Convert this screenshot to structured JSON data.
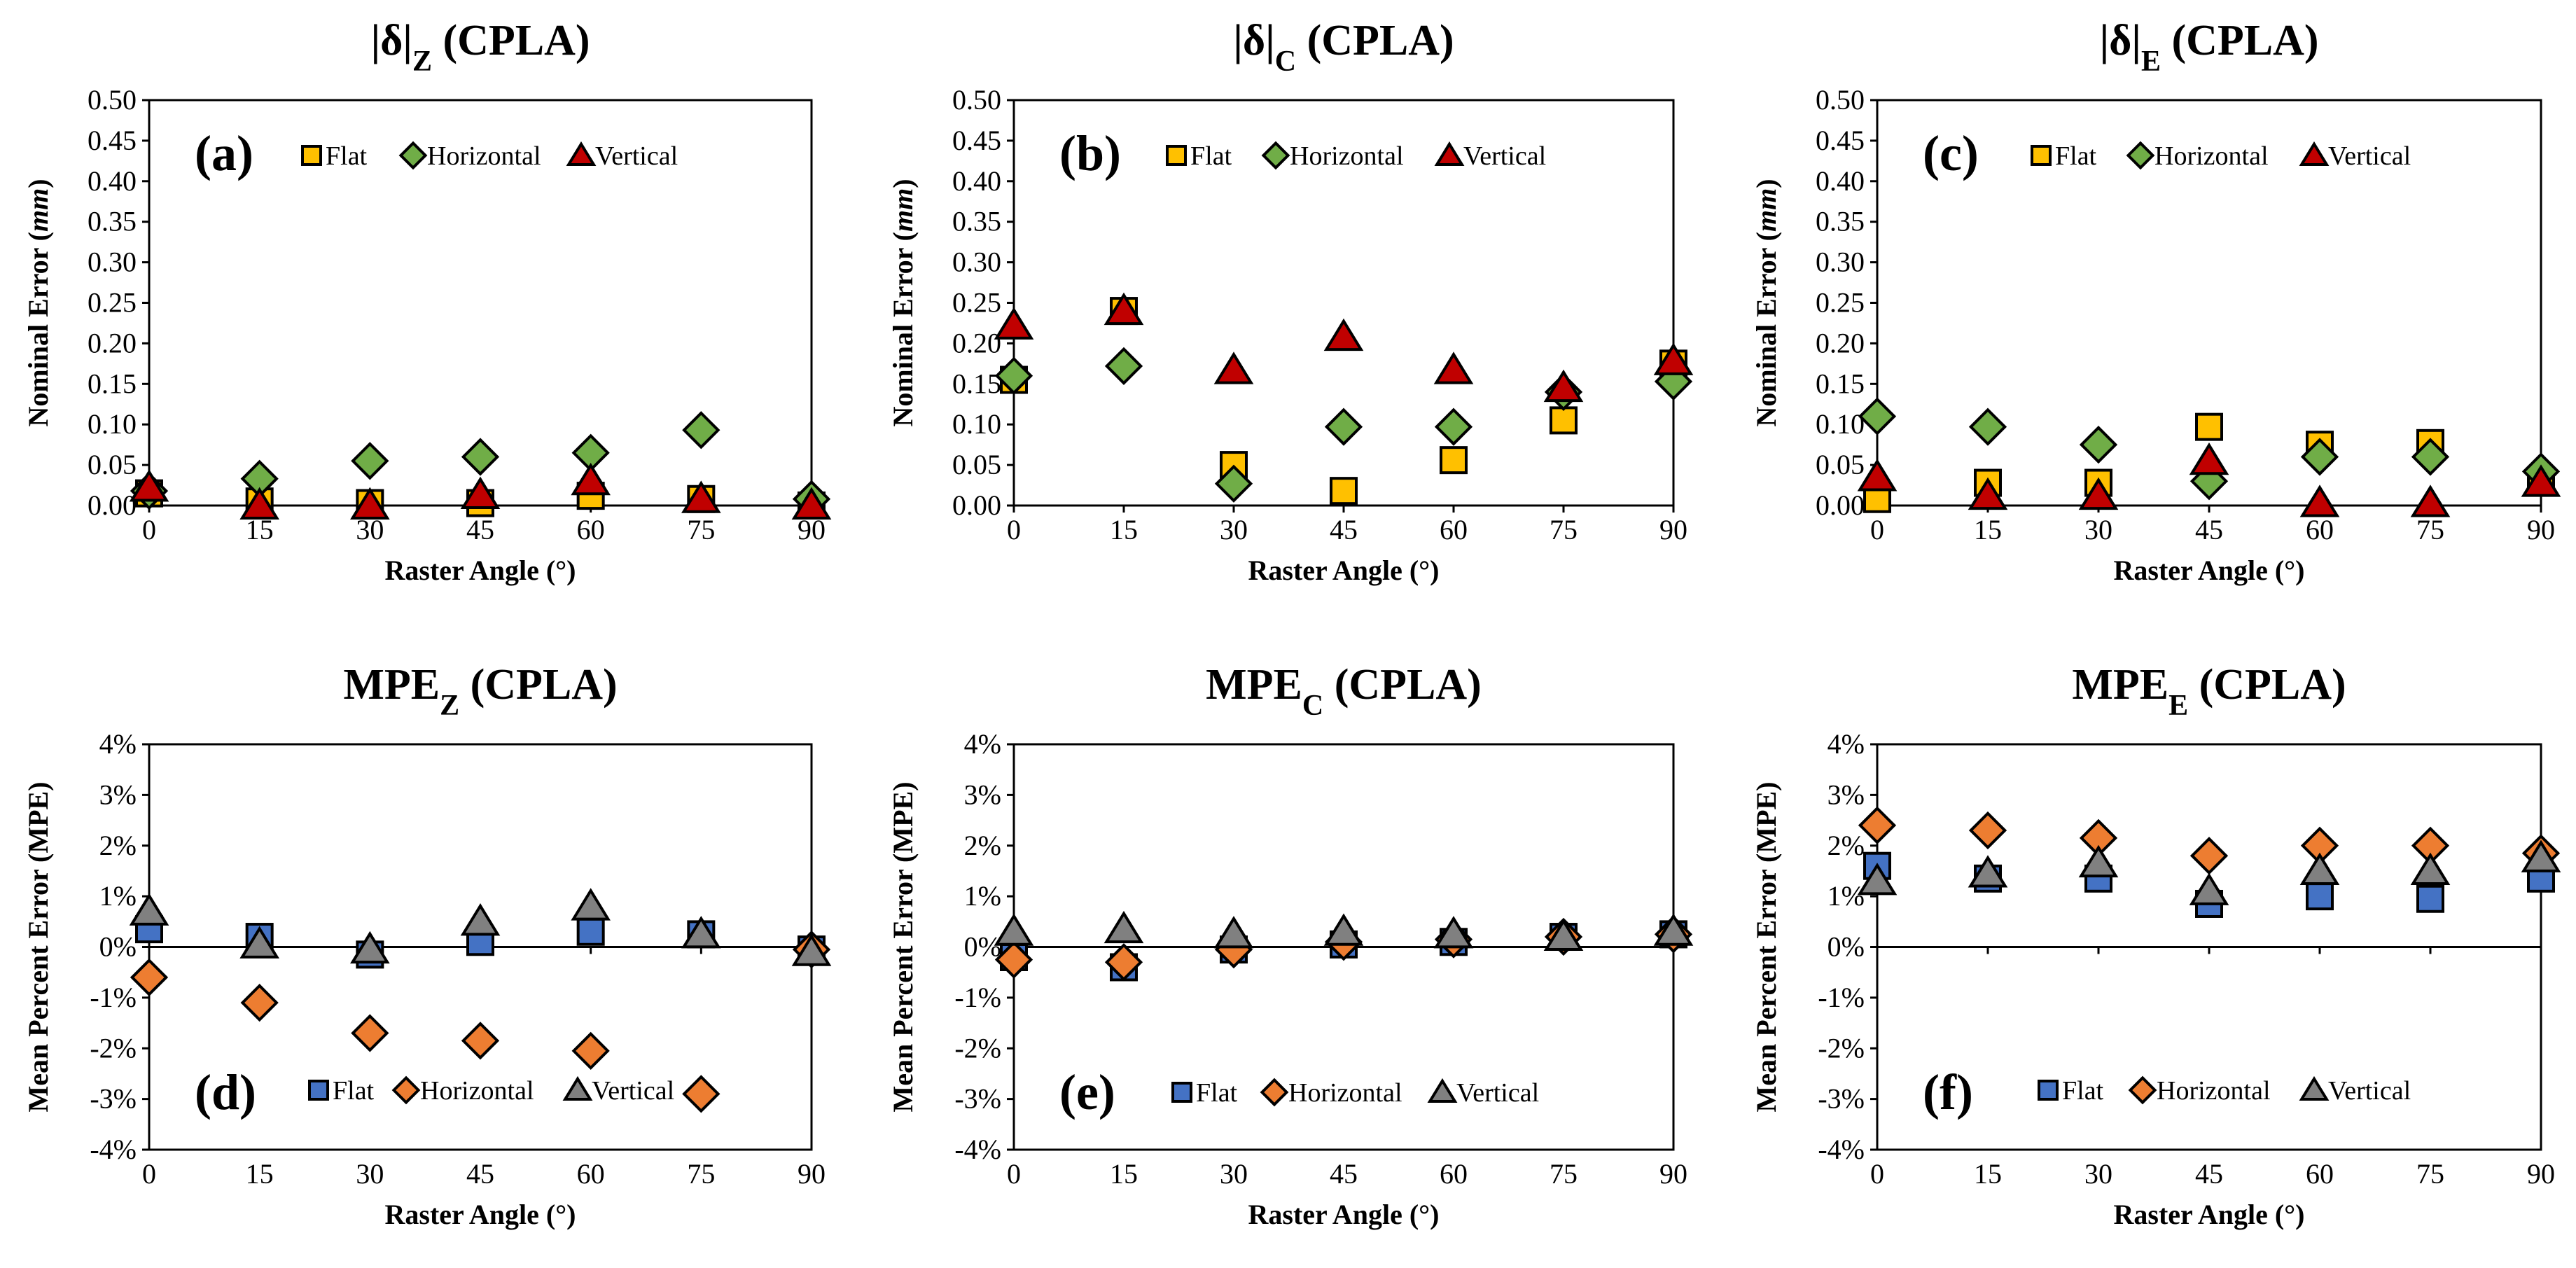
{
  "chart_data": [
    {
      "type": "scatter",
      "title_main": "|δ|",
      "title_sub": "Z",
      "title_rest": "  (CPLA)",
      "panel_label": "(a)",
      "xlabel": "Raster Angle (°)",
      "ylabel_pre": "Nominal  Error (",
      "ylabel_unit": "mm",
      "ylabel_post": ")",
      "x": [
        0,
        15,
        30,
        45,
        60,
        75,
        90
      ],
      "xlim": [
        0,
        90
      ],
      "ylim": [
        0,
        0.5
      ],
      "yticks": [
        "0.00",
        "0.05",
        "0.10",
        "0.15",
        "0.20",
        "0.25",
        "0.30",
        "0.35",
        "0.40",
        "0.45",
        "0.50"
      ],
      "series": [
        {
          "name": "Flat",
          "marker": "square",
          "color": "#FFC000",
          "values": [
            0.015,
            0.005,
            0.003,
            0.003,
            0.012,
            0.008,
            0.0
          ]
        },
        {
          "name": "Horizontal",
          "marker": "diamond",
          "color": "#70AD47",
          "values": [
            0.018,
            0.033,
            0.055,
            0.06,
            0.065,
            0.093,
            0.008
          ]
        },
        {
          "name": "Vertical",
          "marker": "triangle",
          "color": "#C00000",
          "values": [
            0.022,
            0.0,
            0.0,
            0.013,
            0.03,
            0.008,
            0.0
          ]
        }
      ]
    },
    {
      "type": "scatter",
      "title_main": "|δ|",
      "title_sub": "C",
      "title_rest": "  (CPLA)",
      "panel_label": "(b)",
      "xlabel": "Raster Angle (°)",
      "ylabel_pre": "Nominal Error (",
      "ylabel_unit": "mm",
      "ylabel_post": ")",
      "x": [
        0,
        15,
        30,
        45,
        60,
        75,
        90
      ],
      "xlim": [
        0,
        90
      ],
      "ylim": [
        0,
        0.5
      ],
      "yticks": [
        "0.00",
        "0.05",
        "0.10",
        "0.15",
        "0.20",
        "0.25",
        "0.30",
        "0.35",
        "0.40",
        "0.45",
        "0.50"
      ],
      "series": [
        {
          "name": "Flat",
          "marker": "square",
          "color": "#FFC000",
          "values": [
            0.155,
            0.24,
            0.05,
            0.018,
            0.056,
            0.105,
            0.175
          ]
        },
        {
          "name": "Horizontal",
          "marker": "diamond",
          "color": "#70AD47",
          "values": [
            0.16,
            0.172,
            0.027,
            0.097,
            0.097,
            0.14,
            0.153
          ]
        },
        {
          "name": "Vertical",
          "marker": "triangle",
          "color": "#C00000",
          "values": [
            0.222,
            0.24,
            0.167,
            0.208,
            0.167,
            0.145,
            0.178
          ]
        }
      ]
    },
    {
      "type": "scatter",
      "title_main": "|δ|",
      "title_sub": "E",
      "title_rest": "  (CPLA)",
      "panel_label": "(c)",
      "xlabel": "Raster Angle (°)",
      "ylabel_pre": "Nominal Error (",
      "ylabel_unit": "mm",
      "ylabel_post": ")",
      "x": [
        0,
        15,
        30,
        45,
        60,
        75,
        90
      ],
      "xlim": [
        0,
        90
      ],
      "ylim": [
        0,
        0.5
      ],
      "yticks": [
        "0.00",
        "0.05",
        "0.10",
        "0.15",
        "0.20",
        "0.25",
        "0.30",
        "0.35",
        "0.40",
        "0.45",
        "0.50"
      ],
      "series": [
        {
          "name": "Flat",
          "marker": "square",
          "color": "#FFC000",
          "values": [
            0.008,
            0.028,
            0.028,
            0.097,
            0.075,
            0.077,
            0.03
          ]
        },
        {
          "name": "Horizontal",
          "marker": "diamond",
          "color": "#70AD47",
          "values": [
            0.11,
            0.097,
            0.075,
            0.03,
            0.06,
            0.06,
            0.042
          ]
        },
        {
          "name": "Vertical",
          "marker": "triangle",
          "color": "#C00000",
          "values": [
            0.035,
            0.012,
            0.012,
            0.055,
            0.003,
            0.003,
            0.028
          ]
        }
      ]
    },
    {
      "type": "scatter",
      "title_main": "MPE",
      "title_sub": "Z",
      "title_rest": " (CPLA)",
      "panel_label": "(d)",
      "xlabel": "Raster Angle (°)",
      "ylabel_pre": "Mean Percent Error (MPE)",
      "ylabel_unit": "",
      "ylabel_post": "",
      "x": [
        0,
        15,
        30,
        45,
        60,
        75,
        90
      ],
      "xlim": [
        0,
        90
      ],
      "ylim": [
        -4,
        4
      ],
      "yticks": [
        "-4%",
        "-3%",
        "-2%",
        "-1%",
        "0%",
        "1%",
        "2%",
        "3%",
        "4%"
      ],
      "series": [
        {
          "name": "Flat",
          "marker": "square",
          "color": "#4472C4",
          "values": [
            0.35,
            0.2,
            -0.15,
            0.1,
            0.3,
            0.25,
            -0.05
          ]
        },
        {
          "name": "Horizontal",
          "marker": "diamond",
          "color": "#ED7D31",
          "values": [
            -0.6,
            -1.1,
            -1.7,
            -1.85,
            -2.05,
            -2.9,
            -0.05
          ]
        },
        {
          "name": "Vertical",
          "marker": "triangle",
          "color": "#808080",
          "values": [
            0.7,
            0.05,
            -0.05,
            0.5,
            0.8,
            0.25,
            -0.1
          ]
        }
      ]
    },
    {
      "type": "scatter",
      "title_main": "MPE",
      "title_sub": "C",
      "title_rest": " (CPLA)",
      "panel_label": "(e)",
      "xlabel": "Raster Angle (°)",
      "ylabel_pre": "Mean Percent Error (MPE)",
      "ylabel_unit": "",
      "ylabel_post": "",
      "x": [
        0,
        15,
        30,
        45,
        60,
        75,
        90
      ],
      "xlim": [
        0,
        90
      ],
      "ylim": [
        -4,
        4
      ],
      "yticks": [
        "-4%",
        "-3%",
        "-2%",
        "-1%",
        "0%",
        "1%",
        "2%",
        "3%",
        "4%"
      ],
      "series": [
        {
          "name": "Flat",
          "marker": "square",
          "color": "#4472C4",
          "values": [
            -0.2,
            -0.4,
            -0.05,
            0.05,
            0.1,
            0.2,
            0.25
          ]
        },
        {
          "name": "Horizontal",
          "marker": "diamond",
          "color": "#ED7D31",
          "values": [
            -0.25,
            -0.3,
            -0.05,
            0.1,
            0.15,
            0.2,
            0.25
          ]
        },
        {
          "name": "Vertical",
          "marker": "triangle",
          "color": "#808080",
          "values": [
            0.3,
            0.35,
            0.25,
            0.3,
            0.25,
            0.2,
            0.3
          ]
        }
      ]
    },
    {
      "type": "scatter",
      "title_main": "MPE",
      "title_sub": "E",
      "title_rest": " (CPLA)",
      "panel_label": "(f)",
      "xlabel": "Raster Angle (°)",
      "ylabel_pre": "Mean Percent Error (MPE)",
      "ylabel_unit": "",
      "ylabel_post": "",
      "x": [
        0,
        15,
        30,
        45,
        60,
        75,
        90
      ],
      "xlim": [
        0,
        90
      ],
      "ylim": [
        -4,
        4
      ],
      "yticks": [
        "-4%",
        "-3%",
        "-2%",
        "-1%",
        "0%",
        "1%",
        "2%",
        "3%",
        "4%"
      ],
      "series": [
        {
          "name": "Flat",
          "marker": "square",
          "color": "#4472C4",
          "values": [
            1.6,
            1.35,
            1.35,
            0.85,
            1.0,
            0.95,
            1.35
          ]
        },
        {
          "name": "Horizontal",
          "marker": "diamond",
          "color": "#ED7D31",
          "values": [
            2.4,
            2.3,
            2.15,
            1.8,
            2.0,
            2.0,
            1.85
          ]
        },
        {
          "name": "Vertical",
          "marker": "triangle",
          "color": "#808080",
          "values": [
            1.3,
            1.45,
            1.65,
            1.1,
            1.5,
            1.5,
            1.75
          ]
        }
      ]
    }
  ]
}
